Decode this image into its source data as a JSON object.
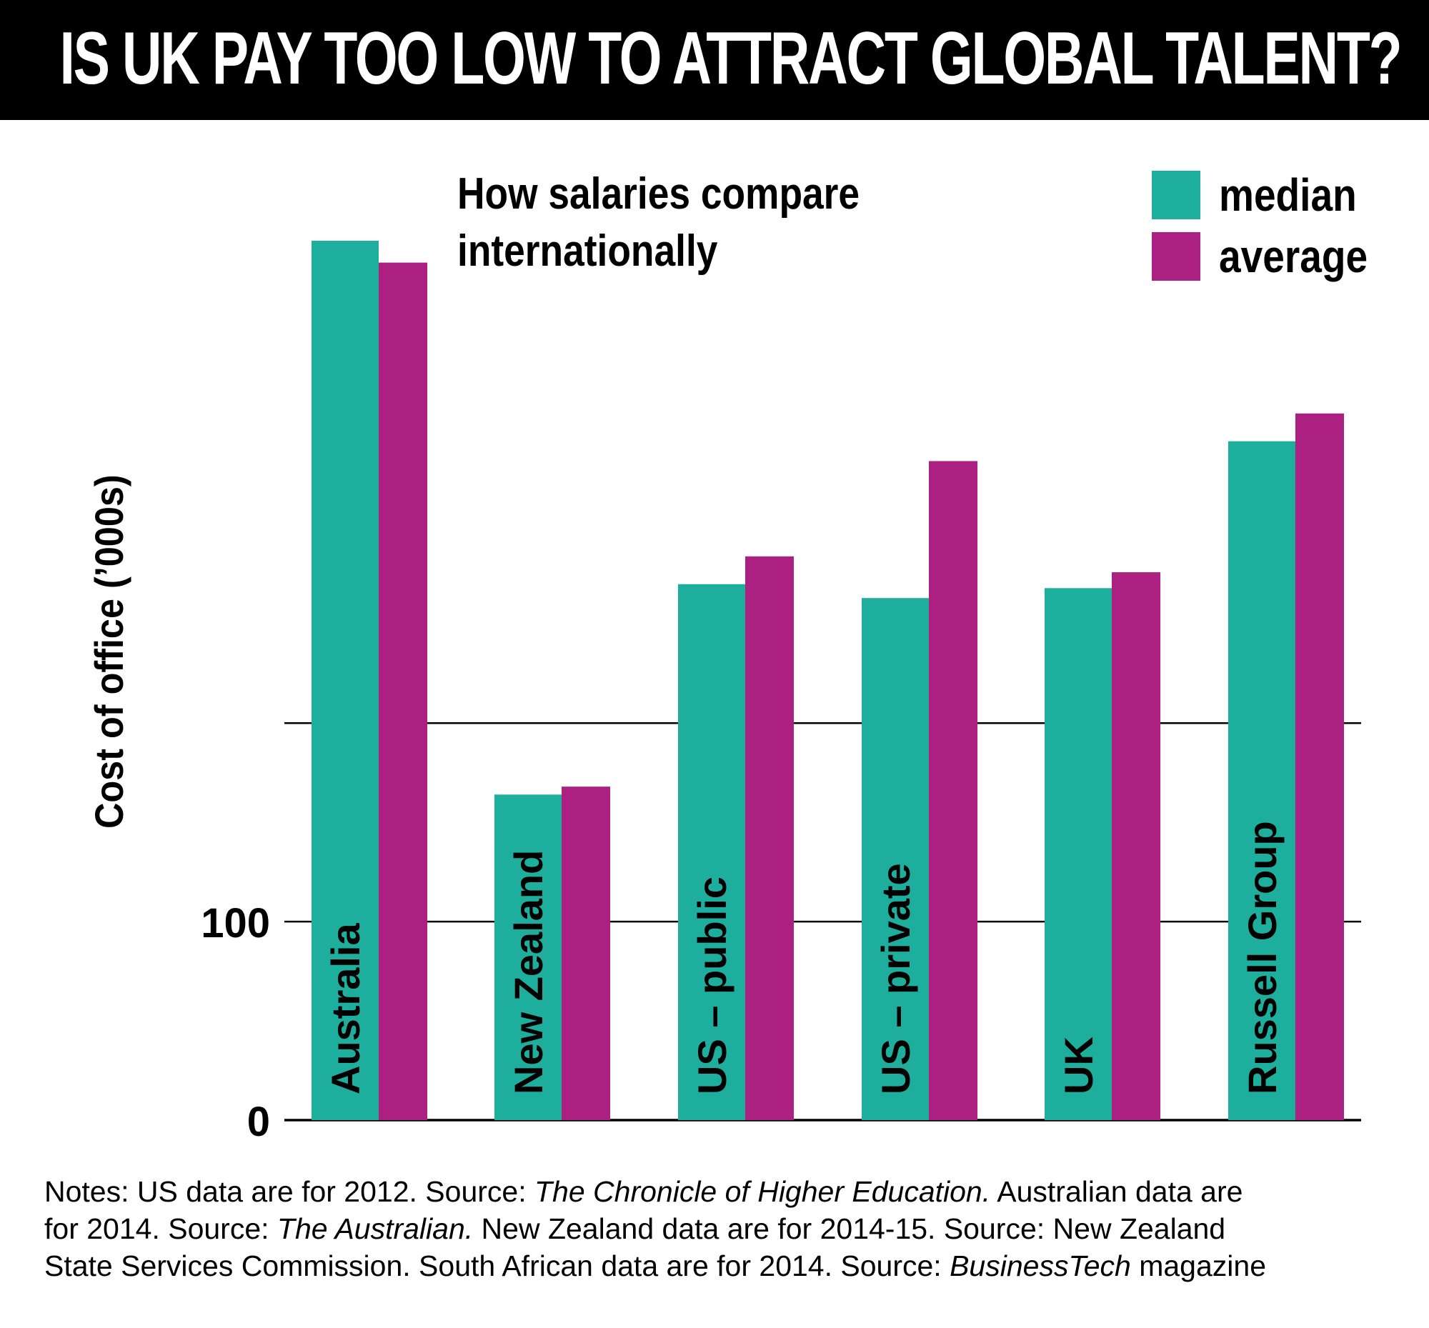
{
  "header": {
    "title": "IS UK PAY TOO LOW TO ATTRACT GLOBAL TALENT?"
  },
  "colors": {
    "median": "#1eae9e",
    "average": "#ac2082",
    "header_bg": "#000000",
    "header_text": "#ffffff"
  },
  "chart_data": {
    "type": "bar",
    "title": "How salaries compare internationally",
    "title_lines": [
      "How salaries compare",
      "internationally"
    ],
    "ylabel": "Cost of office (’000s)",
    "xlabel": "",
    "categories": [
      "Australia",
      "New Zealand",
      "US – public",
      "US – private",
      "UK",
      "Russell Group"
    ],
    "series": [
      {
        "name": "median",
        "values": [
          443,
          164,
          270,
          263,
          268,
          342
        ]
      },
      {
        "name": "average",
        "values": [
          432,
          168,
          284,
          332,
          276,
          356
        ]
      }
    ],
    "ylim": [
      0,
      470
    ],
    "y_ticks": [
      0,
      100,
      200
    ],
    "y_tick_labels": [
      "0",
      "100",
      ""
    ],
    "grid": true,
    "legend": {
      "position": "top-right",
      "entries": [
        "median",
        "average"
      ]
    }
  },
  "notes": {
    "lines": [
      [
        {
          "text": "Notes: US data are for 2012. Source: ",
          "italic": false
        },
        {
          "text": "The Chronicle of Higher Education.",
          "italic": true
        },
        {
          "text": " Australian data are",
          "italic": false
        }
      ],
      [
        {
          "text": "for 2014. Source: ",
          "italic": false
        },
        {
          "text": "The Australian.",
          "italic": true
        },
        {
          "text": " New Zealand data are for 2014-15. Source: New Zealand",
          "italic": false
        }
      ],
      [
        {
          "text": "State Services Commission. South African data are for 2014. Source: ",
          "italic": false
        },
        {
          "text": "BusinessTech",
          "italic": true
        },
        {
          "text": " magazine",
          "italic": false
        }
      ]
    ]
  }
}
